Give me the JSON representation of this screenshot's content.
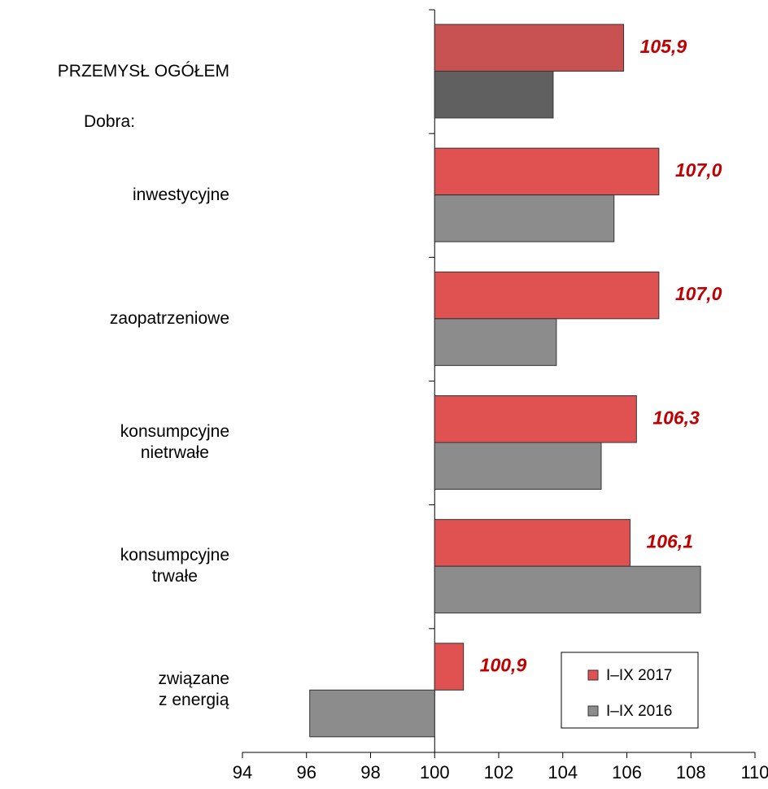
{
  "chart_data": {
    "type": "hbar",
    "categories": [
      "PRZEMYSŁ OGÓŁEM",
      "inwestycyjne",
      "zaopatrzeniowe",
      "konsumpcyjne\nnietrwałe",
      "konsumpcyjne\ntrwałe",
      "związane\nz energią"
    ],
    "annotation": "Dobra:",
    "base": 100,
    "series": [
      {
        "name": "I–IX 2017",
        "color": "#e05252",
        "colors": [
          "#c85252",
          "#e05252",
          "#e05252",
          "#e05252",
          "#e05252",
          "#e05252"
        ],
        "values": [
          105.9,
          107.0,
          107.0,
          106.3,
          106.1,
          100.9
        ],
        "value_labels": [
          "105,9",
          "107,0",
          "107,0",
          "106,3",
          "106,1",
          "100,9"
        ]
      },
      {
        "name": "I–IX 2016",
        "color": "#8c8c8c",
        "colors": [
          "#606060",
          "#8c8c8c",
          "#8c8c8c",
          "#8c8c8c",
          "#8c8c8c",
          "#8c8c8c"
        ],
        "values": [
          103.7,
          105.6,
          103.8,
          105.2,
          108.3,
          96.1
        ]
      }
    ],
    "xlim": [
      94,
      110
    ],
    "xticks": [
      94,
      96,
      98,
      100,
      102,
      104,
      106,
      108,
      110
    ],
    "value_label_color": "#c00000",
    "legend": "lower right"
  }
}
